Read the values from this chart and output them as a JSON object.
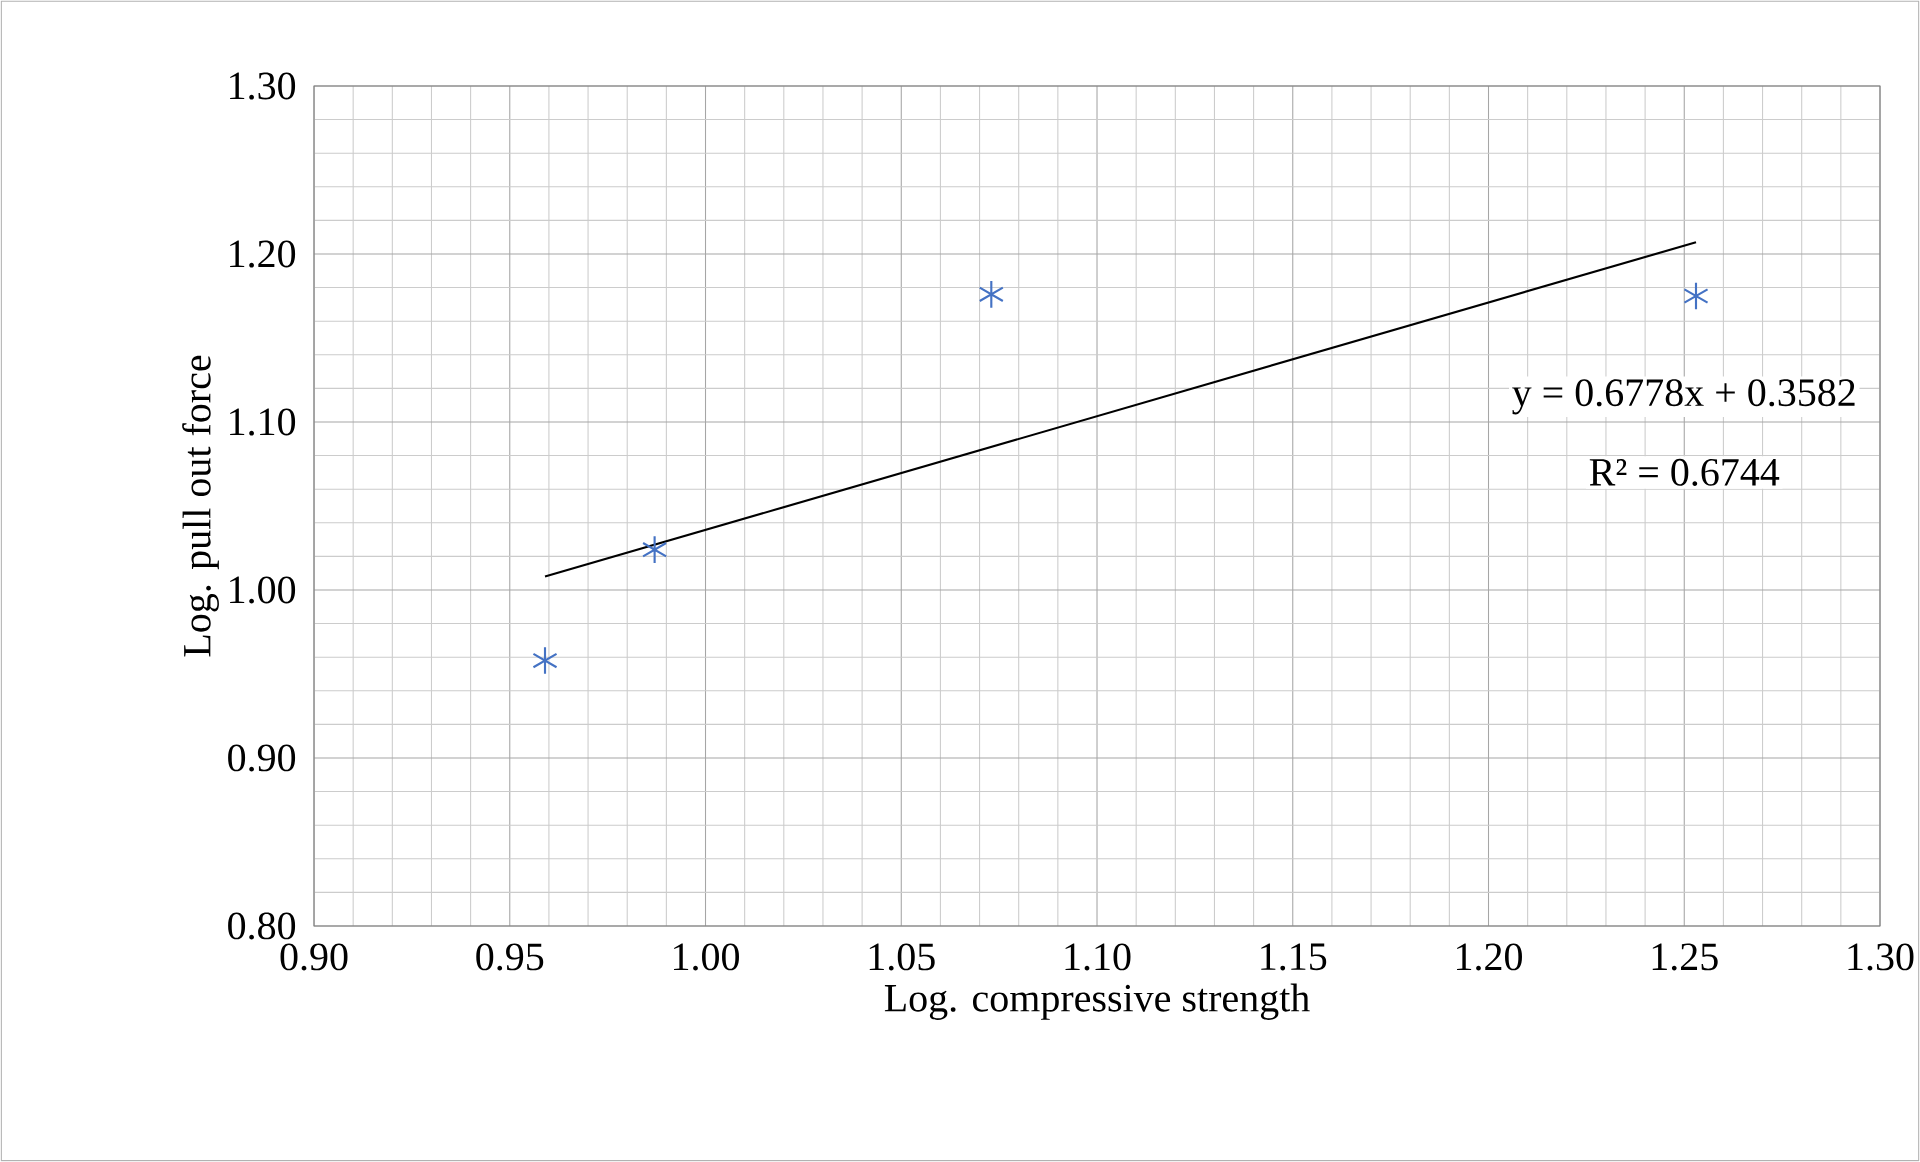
{
  "chart_data": {
    "type": "scatter",
    "xlabel": "Log. compressive strength",
    "ylabel": "Log. pull out force",
    "series": [
      {
        "type": "scatter",
        "color": "#4472c4",
        "marker": "cross",
        "x": [
          0.959,
          0.987,
          1.073,
          1.253
        ],
        "values": [
          0.958,
          1.024,
          1.176,
          1.175
        ]
      },
      {
        "type": "line",
        "color": "#000000",
        "marker": "none",
        "line_style": "solid",
        "x": [
          0.959,
          1.253
        ],
        "values": [
          1.008,
          1.207
        ]
      }
    ],
    "annotations": [
      "y = 0.6778x + 0.3582",
      "R² = 0.6744"
    ],
    "xlim": [
      0.9,
      1.3
    ],
    "ylim": [
      0.8,
      1.3
    ],
    "xticks": [
      {
        "value": 0.9,
        "label": "0.90"
      },
      {
        "value": 0.95,
        "label": "0.95"
      },
      {
        "value": 1.0,
        "label": "1.00"
      },
      {
        "value": 1.05,
        "label": "1.05"
      },
      {
        "value": 1.1,
        "label": "1.10"
      },
      {
        "value": 1.15,
        "label": "1.15"
      },
      {
        "value": 1.2,
        "label": "1.20"
      },
      {
        "value": 1.25,
        "label": "1.25"
      },
      {
        "value": 1.3,
        "label": "1.30"
      }
    ],
    "yticks": [
      {
        "value": 0.8,
        "label": "0.80"
      },
      {
        "value": 0.9,
        "label": "0.90"
      },
      {
        "value": 1.0,
        "label": "1.00"
      },
      {
        "value": 1.1,
        "label": "1.10"
      },
      {
        "value": 1.2,
        "label": "1.20"
      },
      {
        "value": 1.3,
        "label": "1.30"
      }
    ],
    "grid": true
  }
}
